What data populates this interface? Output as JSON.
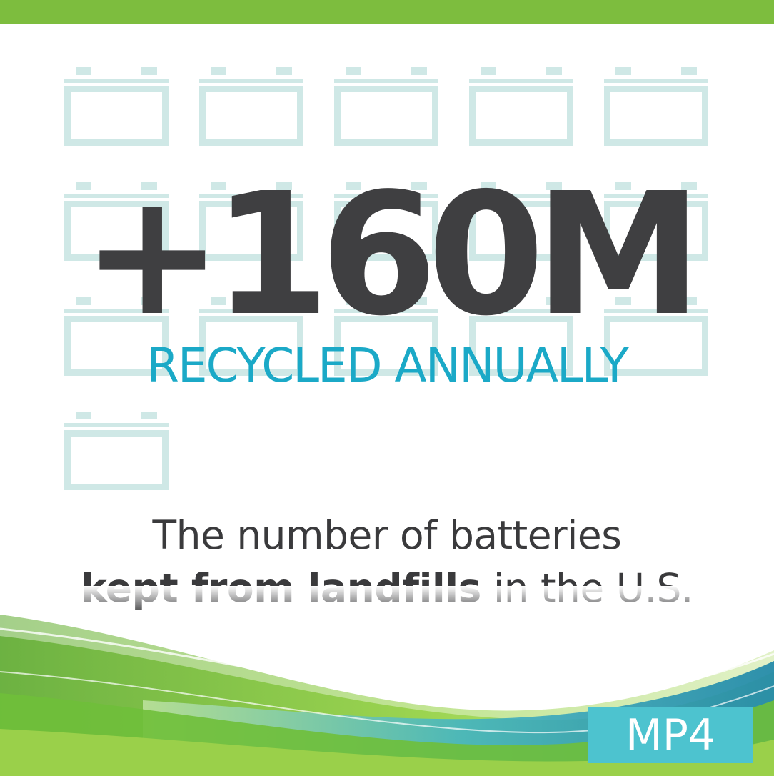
{
  "headline": {
    "number": "+160M",
    "subhead": "RECYCLED ANNUALLY"
  },
  "caption": {
    "line1": "The number of batteries",
    "line2_bold": "kept from landfills",
    "line2_rest": " in the U.S."
  },
  "badge": {
    "label": "MP4"
  },
  "colors": {
    "top_bar": "#7dbd3e",
    "number": "#3f3f41",
    "subhead": "#1ba9c7",
    "battery_outline": "#cfe8e6",
    "badge": "#4dc3cf",
    "wave_green": "#7ec242",
    "wave_teal": "#1aa3b8"
  },
  "icons": {
    "battery": "battery-icon",
    "battery_count": 16
  }
}
